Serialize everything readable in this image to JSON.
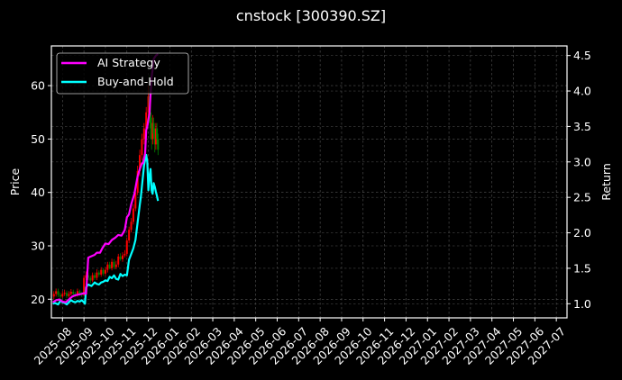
{
  "chart_data": {
    "type": "line",
    "title": "cnstock [300390.SZ]",
    "xlabel": "",
    "ylabel": "Price",
    "ylabel_right": "Return",
    "ylim": [
      17,
      67.5
    ],
    "ylim_right": [
      0.8,
      4.6
    ],
    "grid": true,
    "legend_position": "upper left",
    "x_ticks": [
      "2025-08",
      "2025-09",
      "2025-10",
      "2025-11",
      "2025-12",
      "2026-01",
      "2026-02",
      "2026-03",
      "2026-04",
      "2026-05",
      "2026-06",
      "2026-07",
      "2026-08",
      "2026-09",
      "2026-10",
      "2026-11",
      "2026-12",
      "2027-01",
      "2027-02",
      "2027-03",
      "2027-04",
      "2027-05",
      "2027-06",
      "2027-07"
    ],
    "y_ticks_left": [
      20,
      30,
      40,
      50,
      60
    ],
    "y_ticks_right": [
      1.0,
      1.5,
      2.0,
      2.5,
      3.0,
      3.5,
      4.0,
      4.5
    ],
    "series": [
      {
        "name": "AI Strategy",
        "axis": "right",
        "color": "#ff00ff",
        "x_month": [
          -0.45,
          -0.3,
          -0.15,
          0.0,
          0.15,
          0.3,
          0.45,
          0.6,
          0.75,
          0.9,
          1.0,
          1.1,
          1.2,
          1.35,
          1.5,
          1.6,
          1.75,
          1.85,
          2.0,
          2.15,
          2.3,
          2.45,
          2.6,
          2.75,
          2.9,
          3.0,
          3.1,
          3.2,
          3.35,
          3.5,
          3.6,
          3.7,
          3.75,
          3.8,
          3.85,
          3.9,
          3.95,
          4.0,
          4.05,
          4.1,
          4.15,
          4.2,
          4.25,
          4.35,
          4.45
        ],
        "values": [
          1.02,
          1.05,
          1.06,
          1.03,
          1.02,
          1.06,
          1.1,
          1.12,
          1.13,
          1.14,
          1.15,
          1.14,
          1.65,
          1.67,
          1.69,
          1.72,
          1.72,
          1.78,
          1.85,
          1.84,
          1.9,
          1.93,
          1.97,
          1.96,
          2.04,
          2.22,
          2.26,
          2.4,
          2.55,
          2.8,
          2.9,
          2.98,
          2.98,
          3.05,
          3.12,
          3.45,
          3.5,
          3.6,
          3.68,
          3.95,
          4.2,
          4.3,
          4.45,
          4.5,
          4.52
        ]
      },
      {
        "name": "Buy-and-Hold",
        "axis": "right",
        "color": "#00ffff",
        "x_month": [
          -0.45,
          -0.35,
          -0.2,
          -0.1,
          0.0,
          0.1,
          0.2,
          0.3,
          0.4,
          0.5,
          0.6,
          0.7,
          0.8,
          0.9,
          1.0,
          1.05,
          1.1,
          1.2,
          1.35,
          1.5,
          1.6,
          1.7,
          1.8,
          1.9,
          2.0,
          2.1,
          2.2,
          2.3,
          2.4,
          2.5,
          2.6,
          2.7,
          2.8,
          2.9,
          3.0,
          3.1,
          3.2,
          3.3,
          3.4,
          3.5,
          3.6,
          3.65,
          3.7,
          3.8,
          3.9,
          3.95,
          4.0,
          4.05,
          4.1,
          4.15,
          4.2,
          4.25,
          4.3,
          4.35,
          4.4,
          4.45
        ],
        "values": [
          1.0,
          1.01,
          0.99,
          1.04,
          1.02,
          1.01,
          0.99,
          1.02,
          1.05,
          1.03,
          1.02,
          1.04,
          1.03,
          1.05,
          1.02,
          1.0,
          1.23,
          1.27,
          1.25,
          1.3,
          1.28,
          1.27,
          1.3,
          1.31,
          1.33,
          1.32,
          1.38,
          1.36,
          1.4,
          1.35,
          1.34,
          1.42,
          1.39,
          1.41,
          1.4,
          1.62,
          1.7,
          1.78,
          1.9,
          2.15,
          2.4,
          2.5,
          2.65,
          2.95,
          3.1,
          3.0,
          2.6,
          2.8,
          2.9,
          2.6,
          2.55,
          2.7,
          2.65,
          2.58,
          2.52,
          2.45
        ]
      }
    ],
    "candles": {
      "axis": "left",
      "up_color": "#ff0000",
      "down_color": "#008000",
      "x_month": [
        -0.4,
        -0.3,
        -0.2,
        -0.1,
        0.0,
        0.1,
        0.2,
        0.3,
        0.4,
        0.5,
        0.6,
        0.7,
        0.8,
        0.9,
        1.0,
        1.1,
        1.2,
        1.3,
        1.4,
        1.5,
        1.6,
        1.7,
        1.8,
        1.9,
        2.0,
        2.1,
        2.2,
        2.3,
        2.4,
        2.5,
        2.6,
        2.7,
        2.8,
        2.9,
        3.0,
        3.1,
        3.2,
        3.3,
        3.4,
        3.5,
        3.6,
        3.7,
        3.8,
        3.9,
        4.0,
        4.05,
        4.1,
        4.15,
        4.2,
        4.25,
        4.3,
        4.35,
        4.4,
        4.45
      ],
      "open": [
        20.5,
        21.0,
        21.5,
        20.8,
        20.5,
        21.0,
        21.2,
        20.6,
        21.0,
        21.4,
        21.0,
        20.8,
        21.5,
        21.0,
        20.8,
        24.0,
        24.5,
        24.0,
        23.5,
        24.5,
        24.0,
        25.0,
        24.6,
        25.5,
        24.8,
        25.5,
        26.5,
        25.8,
        27.0,
        26.0,
        26.5,
        28.0,
        27.5,
        28.2,
        28.5,
        31.0,
        33.0,
        34.5,
        37.0,
        40.0,
        44.0,
        47.0,
        50.0,
        52.0,
        55.0,
        58.0,
        55.0,
        52.0,
        50.0,
        53.0,
        51.0,
        49.0,
        52.0,
        50.0
      ],
      "close": [
        21.0,
        21.5,
        20.8,
        20.5,
        21.0,
        21.2,
        20.6,
        21.0,
        21.4,
        21.0,
        20.8,
        21.5,
        21.0,
        20.8,
        24.0,
        24.5,
        24.0,
        23.5,
        24.5,
        24.0,
        25.0,
        24.6,
        25.5,
        24.8,
        25.5,
        26.5,
        25.8,
        27.0,
        26.0,
        26.5,
        28.0,
        27.5,
        28.2,
        28.5,
        31.0,
        33.0,
        34.5,
        37.0,
        40.0,
        44.0,
        47.0,
        50.0,
        52.0,
        55.0,
        58.0,
        55.0,
        52.0,
        50.0,
        53.0,
        51.0,
        49.0,
        52.0,
        50.0,
        48.0
      ],
      "high": [
        21.5,
        22.0,
        22.0,
        21.2,
        21.5,
        21.8,
        21.6,
        21.5,
        21.9,
        21.8,
        21.4,
        22.0,
        21.8,
        21.4,
        24.5,
        25.2,
        25.0,
        24.4,
        25.0,
        25.0,
        25.6,
        25.4,
        26.0,
        25.8,
        26.0,
        27.0,
        27.0,
        27.6,
        27.5,
        27.2,
        28.5,
        28.6,
        28.8,
        29.2,
        31.5,
        33.6,
        35.2,
        37.8,
        40.8,
        45.0,
        48.0,
        51.0,
        53.0,
        56.0,
        60.0,
        62.0,
        58.0,
        54.0,
        54.5,
        54.0,
        52.0,
        53.0,
        53.0,
        51.0
      ],
      "low": [
        20.0,
        20.5,
        20.4,
        20.0,
        20.2,
        20.6,
        20.2,
        20.3,
        20.7,
        20.6,
        20.4,
        20.5,
        20.6,
        20.4,
        20.6,
        23.6,
        23.6,
        23.0,
        23.2,
        23.6,
        23.6,
        24.2,
        24.2,
        24.4,
        24.4,
        25.0,
        25.6,
        25.4,
        25.6,
        25.6,
        26.0,
        27.2,
        27.0,
        27.8,
        28.0,
        30.5,
        32.5,
        34.0,
        36.5,
        39.5,
        43.0,
        46.0,
        49.0,
        51.0,
        54.0,
        53.0,
        50.0,
        48.0,
        49.0,
        50.0,
        47.5,
        48.0,
        49.0,
        47.0
      ]
    }
  }
}
